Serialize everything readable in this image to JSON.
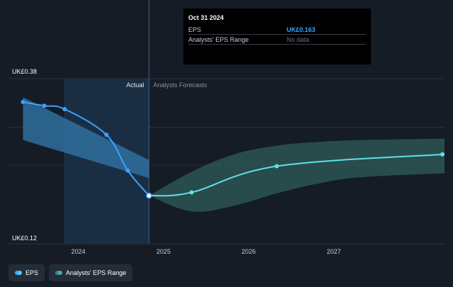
{
  "tooltip": {
    "date": "Oct 31 2024",
    "rows": [
      {
        "label": "EPS",
        "value": "UK£0.163"
      },
      {
        "label": "Analysts' EPS Range",
        "value": "No data"
      }
    ]
  },
  "legend": [
    {
      "label": "EPS",
      "icon": "eps-dot-icon"
    },
    {
      "label": "Analysts' EPS Range",
      "icon": "range-dot-icon"
    }
  ],
  "colors": {
    "background": "#151c26",
    "eps_line": "#3aa3ff",
    "forecast_line": "#5fe0e8",
    "actual_range": "#2f6f9e",
    "forecast_range": "#2f5c5a",
    "actual_highlight": "#1b3147"
  },
  "chart_data": {
    "type": "line",
    "y_unit_prefix": "UK£",
    "ylim": [
      0.12,
      0.38
    ],
    "y_tick_labels": [
      "UK£0.38",
      "UK£0.12"
    ],
    "x_ticks": [
      {
        "label": "2024",
        "x": 2024.0
      },
      {
        "label": "2025",
        "x": 2025.0
      },
      {
        "label": "2026",
        "x": 2026.0
      },
      {
        "label": "2027",
        "x": 2027.0
      }
    ],
    "xlim": [
      2023.18,
      2028.3
    ],
    "region_labels": {
      "actual": "Actual",
      "forecast": "Analysts Forecasts"
    },
    "highlight_start": 2023.84,
    "divider_x": 2024.83,
    "series": [
      {
        "name": "EPS",
        "kind": "actual",
        "points": [
          {
            "x": 2023.35,
            "y": 0.36
          },
          {
            "x": 2023.6,
            "y": 0.352
          },
          {
            "x": 2023.84,
            "y": 0.345
          },
          {
            "x": 2024.33,
            "y": 0.291
          },
          {
            "x": 2024.58,
            "y": 0.216
          },
          {
            "x": 2024.83,
            "y": 0.163
          }
        ]
      },
      {
        "name": "EPS",
        "kind": "forecast",
        "points": [
          {
            "x": 2024.83,
            "y": 0.163
          },
          {
            "x": 2025.33,
            "y": 0.17
          },
          {
            "x": 2026.33,
            "y": 0.225
          },
          {
            "x": 2028.3,
            "y": 0.25
          }
        ]
      }
    ],
    "ranges": [
      {
        "name": "Analysts' EPS Range",
        "kind": "actual",
        "x": [
          2023.35,
          2024.83
        ],
        "high": [
          0.37,
          0.238
        ],
        "low": [
          0.28,
          0.2
        ]
      },
      {
        "name": "Analysts' EPS Range",
        "kind": "forecast",
        "x": [
          2024.83,
          2025.33,
          2025.83,
          2026.33,
          2026.83,
          2027.33,
          2028.3
        ],
        "high": [
          0.163,
          0.213,
          0.25,
          0.268,
          0.276,
          0.28,
          0.283
        ],
        "low": [
          0.163,
          0.13,
          0.142,
          0.168,
          0.189,
          0.202,
          0.21
        ]
      }
    ]
  }
}
